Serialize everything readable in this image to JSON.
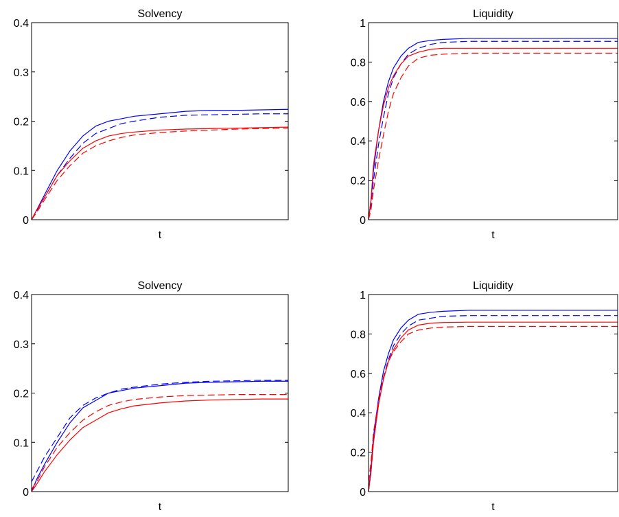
{
  "chart_data": [
    {
      "type": "line",
      "title": "Solvency",
      "xlabel": "t",
      "ylabel": "",
      "xlim": [
        0,
        100
      ],
      "ylim": [
        0,
        0.4
      ],
      "yticks": [
        "0",
        "0.1",
        "0.2",
        "0.3",
        "0.4"
      ],
      "yticks_values": [
        0,
        0.1,
        0.2,
        0.3,
        0.4
      ],
      "x": [
        0,
        2,
        5,
        10,
        15,
        20,
        25,
        30,
        35,
        40,
        50,
        60,
        70,
        80,
        90,
        100
      ],
      "series": [
        {
          "color": "#0000ff",
          "dash": "solid",
          "values": [
            0,
            0.02,
            0.05,
            0.1,
            0.14,
            0.17,
            0.19,
            0.2,
            0.205,
            0.21,
            0.215,
            0.22,
            0.222,
            0.222,
            0.223,
            0.224
          ]
        },
        {
          "color": "#0000ff",
          "dash": "dashed",
          "values": [
            0,
            0.018,
            0.045,
            0.09,
            0.125,
            0.155,
            0.175,
            0.185,
            0.195,
            0.2,
            0.208,
            0.212,
            0.213,
            0.214,
            0.215,
            0.215
          ]
        },
        {
          "color": "#ff0000",
          "dash": "solid",
          "values": [
            0,
            0.02,
            0.045,
            0.09,
            0.12,
            0.145,
            0.16,
            0.17,
            0.175,
            0.178,
            0.182,
            0.184,
            0.185,
            0.186,
            0.187,
            0.188
          ]
        },
        {
          "color": "#ff0000",
          "dash": "dashed",
          "values": [
            0,
            0.015,
            0.04,
            0.08,
            0.11,
            0.135,
            0.15,
            0.16,
            0.167,
            0.172,
            0.177,
            0.18,
            0.182,
            0.184,
            0.185,
            0.186
          ]
        }
      ]
    },
    {
      "type": "line",
      "title": "Liquidity",
      "xlabel": "t",
      "ylabel": "",
      "xlim": [
        0,
        100
      ],
      "ylim": [
        0,
        1
      ],
      "yticks": [
        "0",
        "0.2",
        "0.4",
        "0.6",
        "0.8",
        "1"
      ],
      "yticks_values": [
        0,
        0.2,
        0.4,
        0.6,
        0.8,
        1
      ],
      "x": [
        0,
        1,
        2,
        4,
        6,
        8,
        10,
        13,
        16,
        20,
        25,
        30,
        40,
        50,
        60,
        70,
        80,
        90,
        100
      ],
      "series": [
        {
          "color": "#0000ff",
          "dash": "solid",
          "values": [
            0,
            0.1,
            0.25,
            0.45,
            0.6,
            0.7,
            0.77,
            0.83,
            0.87,
            0.9,
            0.91,
            0.915,
            0.92,
            0.92,
            0.92,
            0.92,
            0.92,
            0.92,
            0.92
          ]
        },
        {
          "color": "#0000ff",
          "dash": "dashed",
          "values": [
            0,
            0.08,
            0.2,
            0.38,
            0.52,
            0.64,
            0.72,
            0.79,
            0.84,
            0.87,
            0.89,
            0.9,
            0.905,
            0.905,
            0.905,
            0.905,
            0.905,
            0.905,
            0.905
          ]
        },
        {
          "color": "#ff0000",
          "dash": "solid",
          "values": [
            0,
            0.1,
            0.28,
            0.45,
            0.58,
            0.67,
            0.73,
            0.79,
            0.83,
            0.85,
            0.865,
            0.87,
            0.87,
            0.87,
            0.87,
            0.87,
            0.87,
            0.87,
            0.87
          ]
        },
        {
          "color": "#ff0000",
          "dash": "dashed",
          "values": [
            0,
            0.05,
            0.15,
            0.3,
            0.43,
            0.55,
            0.64,
            0.72,
            0.78,
            0.82,
            0.835,
            0.84,
            0.845,
            0.845,
            0.845,
            0.845,
            0.845,
            0.845,
            0.845
          ]
        }
      ]
    },
    {
      "type": "line",
      "title": "Solvency",
      "xlabel": "t",
      "ylabel": "",
      "xlim": [
        0,
        100
      ],
      "ylim": [
        0,
        0.4
      ],
      "yticks": [
        "0",
        "0.1",
        "0.2",
        "0.3",
        "0.4"
      ],
      "yticks_values": [
        0,
        0.1,
        0.2,
        0.3,
        0.4
      ],
      "x": [
        0,
        2,
        5,
        10,
        15,
        20,
        25,
        30,
        35,
        40,
        50,
        60,
        70,
        80,
        90,
        100
      ],
      "series": [
        {
          "color": "#0000ff",
          "dash": "solid",
          "values": [
            0,
            0.025,
            0.055,
            0.1,
            0.14,
            0.17,
            0.185,
            0.2,
            0.205,
            0.21,
            0.215,
            0.22,
            0.222,
            0.223,
            0.224,
            0.224
          ]
        },
        {
          "color": "#0000ff",
          "dash": "dashed",
          "values": [
            0.02,
            0.04,
            0.07,
            0.11,
            0.15,
            0.175,
            0.19,
            0.2,
            0.208,
            0.212,
            0.218,
            0.222,
            0.224,
            0.225,
            0.226,
            0.226
          ]
        },
        {
          "color": "#ff0000",
          "dash": "solid",
          "values": [
            0,
            0.015,
            0.04,
            0.075,
            0.105,
            0.13,
            0.145,
            0.16,
            0.168,
            0.174,
            0.18,
            0.184,
            0.186,
            0.187,
            0.188,
            0.188
          ]
        },
        {
          "color": "#ff0000",
          "dash": "dashed",
          "values": [
            0.005,
            0.02,
            0.05,
            0.09,
            0.12,
            0.145,
            0.162,
            0.175,
            0.182,
            0.187,
            0.192,
            0.195,
            0.196,
            0.197,
            0.197,
            0.197
          ]
        }
      ]
    },
    {
      "type": "line",
      "title": "Liquidity",
      "xlabel": "t",
      "ylabel": "",
      "xlim": [
        0,
        100
      ],
      "ylim": [
        0,
        1
      ],
      "yticks": [
        "0",
        "0.2",
        "0.4",
        "0.6",
        "0.8",
        "1"
      ],
      "yticks_values": [
        0,
        0.2,
        0.4,
        0.6,
        0.8,
        1
      ],
      "x": [
        0,
        1,
        2,
        4,
        6,
        8,
        10,
        13,
        16,
        20,
        25,
        30,
        40,
        50,
        60,
        70,
        80,
        90,
        100
      ],
      "series": [
        {
          "color": "#0000ff",
          "dash": "solid",
          "values": [
            0,
            0.12,
            0.28,
            0.47,
            0.61,
            0.7,
            0.77,
            0.83,
            0.87,
            0.9,
            0.91,
            0.915,
            0.92,
            0.92,
            0.92,
            0.92,
            0.92,
            0.92,
            0.92
          ]
        },
        {
          "color": "#0000ff",
          "dash": "dashed",
          "values": [
            0,
            0.1,
            0.25,
            0.44,
            0.58,
            0.67,
            0.74,
            0.8,
            0.84,
            0.87,
            0.88,
            0.89,
            0.893,
            0.893,
            0.893,
            0.893,
            0.893,
            0.893,
            0.893
          ]
        },
        {
          "color": "#ff0000",
          "dash": "solid",
          "values": [
            0,
            0.1,
            0.25,
            0.44,
            0.57,
            0.66,
            0.72,
            0.78,
            0.82,
            0.845,
            0.855,
            0.858,
            0.86,
            0.86,
            0.86,
            0.86,
            0.86,
            0.86,
            0.86
          ]
        },
        {
          "color": "#ff0000",
          "dash": "dashed",
          "values": [
            0.05,
            0.15,
            0.3,
            0.46,
            0.58,
            0.66,
            0.71,
            0.76,
            0.8,
            0.82,
            0.83,
            0.835,
            0.838,
            0.838,
            0.838,
            0.838,
            0.838,
            0.838,
            0.838
          ]
        }
      ]
    }
  ]
}
